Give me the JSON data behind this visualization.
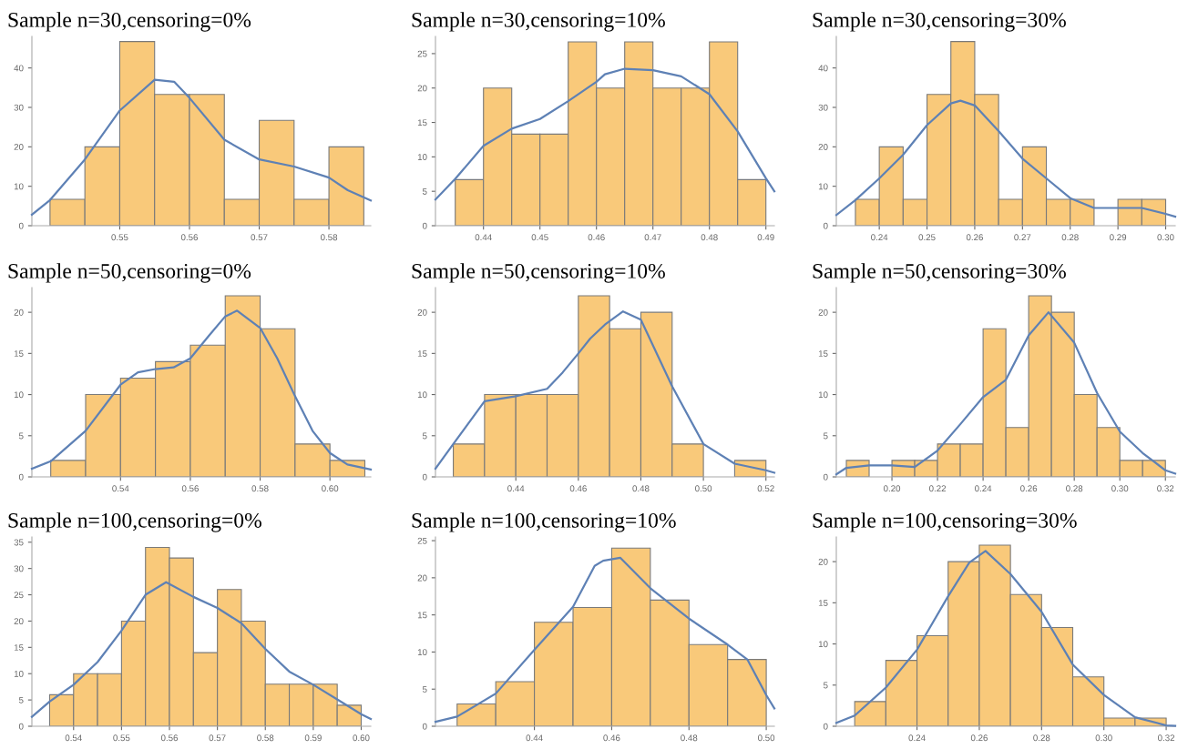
{
  "chart_data": [
    {
      "type": "histogram",
      "title": "Sample n=30,censoring=0%",
      "bins": [
        0.54,
        0.545,
        0.55,
        0.555,
        0.56,
        0.565,
        0.57,
        0.575,
        0.58,
        0.585
      ],
      "series": [
        {
          "color": "#f9c97a",
          "values": [
            6.7,
            20,
            46.7,
            33.3,
            33.3,
            6.7,
            26.7,
            6.7,
            20
          ]
        },
        {
          "type": "line",
          "color": "#5e81b5",
          "x": [
            0.5374,
            0.54,
            0.545,
            0.55,
            0.555,
            0.5578,
            0.56,
            0.565,
            0.57,
            0.575,
            0.58,
            0.5827,
            0.586
          ],
          "values": [
            2.8,
            6.5,
            16.8,
            29.2,
            37,
            36.5,
            32.4,
            21.8,
            16.8,
            15,
            12.2,
            9,
            6.4
          ]
        }
      ],
      "xlim": [
        0.5374,
        0.586
      ],
      "xticks": [
        0.55,
        0.56,
        0.57,
        0.58
      ],
      "ylim": [
        0,
        48
      ],
      "yticks": [
        0,
        10,
        20,
        30,
        40
      ]
    },
    {
      "type": "histogram",
      "title": "Sample n=30,censoring=10%",
      "bins": [
        0.435,
        0.44,
        0.445,
        0.45,
        0.455,
        0.46,
        0.465,
        0.47,
        0.475,
        0.48,
        0.485,
        0.49
      ],
      "series": [
        {
          "color": "#f9c97a",
          "values": [
            6.7,
            20,
            13.3,
            13.3,
            26.7,
            20,
            26.7,
            20,
            20,
            26.7,
            6.7
          ]
        },
        {
          "type": "line",
          "color": "#5e81b5",
          "x": [
            0.4315,
            0.435,
            0.44,
            0.445,
            0.45,
            0.455,
            0.46,
            0.4615,
            0.465,
            0.47,
            0.475,
            0.48,
            0.485,
            0.49,
            0.4915
          ],
          "values": [
            3.8,
            6.8,
            11.6,
            14.1,
            15.5,
            18.1,
            20.9,
            22,
            22.8,
            22.6,
            21.7,
            19.1,
            13.7,
            6.9,
            5.0
          ]
        }
      ],
      "xlim": [
        0.4315,
        0.4915
      ],
      "xticks": [
        0.44,
        0.45,
        0.46,
        0.47,
        0.48,
        0.49
      ],
      "ylim": [
        0,
        27.5
      ],
      "yticks": [
        0,
        5,
        10,
        15,
        20,
        25
      ]
    },
    {
      "type": "histogram",
      "title": "Sample n=30,censoring=30%",
      "bins": [
        0.235,
        0.24,
        0.245,
        0.25,
        0.255,
        0.26,
        0.265,
        0.27,
        0.275,
        0.28,
        0.285,
        0.29,
        0.295,
        0.3
      ],
      "series": [
        {
          "color": "#f9c97a",
          "values": [
            6.7,
            20,
            6.7,
            33.3,
            46.7,
            33.3,
            6.7,
            20,
            6.7,
            6.7,
            0,
            6.7,
            6.7
          ]
        },
        {
          "type": "line",
          "color": "#5e81b5",
          "x": [
            0.231,
            0.235,
            0.24,
            0.245,
            0.25,
            0.255,
            0.257,
            0.26,
            0.265,
            0.27,
            0.275,
            0.28,
            0.285,
            0.29,
            0.295,
            0.3,
            0.302
          ],
          "values": [
            2.7,
            6.5,
            12,
            18,
            25.5,
            31,
            31.7,
            30.5,
            24,
            17,
            12,
            7,
            4.5,
            4.5,
            4.5,
            3,
            2.3
          ]
        }
      ],
      "xlim": [
        0.231,
        0.302
      ],
      "xticks": [
        0.24,
        0.25,
        0.26,
        0.27,
        0.28,
        0.29,
        {
          "value": 0.3,
          "label": "0.30"
        }
      ],
      "ylim": [
        0,
        48
      ],
      "yticks": [
        0,
        10,
        20,
        30,
        40
      ]
    },
    {
      "type": "histogram",
      "title": "Sample n=50,censoring=0%",
      "bins": [
        0.52,
        0.53,
        0.54,
        0.55,
        0.56,
        0.57,
        0.58,
        0.59,
        0.6,
        0.61
      ],
      "series": [
        {
          "color": "#f9c97a",
          "values": [
            2,
            10,
            12,
            14,
            16,
            22,
            18,
            4,
            2
          ]
        },
        {
          "type": "line",
          "color": "#5e81b5",
          "x": [
            0.5146,
            0.52,
            0.53,
            0.54,
            0.545,
            0.55,
            0.5552,
            0.56,
            0.5654,
            0.57,
            0.5734,
            0.58,
            0.5849,
            0.59,
            0.595,
            0.6,
            0.605,
            0.6117
          ],
          "values": [
            1.0,
            1.9,
            5.6,
            11.2,
            12.7,
            13.1,
            13.3,
            14.4,
            17.2,
            19.5,
            20.2,
            18.1,
            14.4,
            9.8,
            5.6,
            2.9,
            1.5,
            0.9
          ]
        }
      ],
      "xlim": [
        0.5146,
        0.6117
      ],
      "xticks": [
        0.54,
        0.56,
        0.58,
        {
          "value": 0.6,
          "label": "0.60"
        }
      ],
      "ylim": [
        0,
        23
      ],
      "yticks": [
        0,
        5,
        10,
        15,
        20
      ]
    },
    {
      "type": "histogram",
      "title": "Sample n=50,censoring=10%",
      "bins": [
        0.42,
        0.43,
        0.44,
        0.45,
        0.46,
        0.47,
        0.48,
        0.49,
        0.5,
        0.51,
        0.52
      ],
      "series": [
        {
          "color": "#f9c97a",
          "values": [
            4,
            10,
            10,
            10,
            22,
            18,
            20,
            4,
            0,
            2
          ]
        },
        {
          "type": "line",
          "color": "#5e81b5",
          "x": [
            0.4143,
            0.42,
            0.43,
            0.44,
            0.45,
            0.455,
            0.46,
            0.4638,
            0.4685,
            0.4743,
            0.48,
            0.49,
            0.5,
            0.51,
            0.52,
            0.5227
          ],
          "values": [
            1.0,
            4,
            9.2,
            9.8,
            10.7,
            12.7,
            15,
            16.8,
            18.5,
            20.1,
            19.1,
            11,
            4,
            1.6,
            0.8,
            0.5
          ]
        }
      ],
      "xlim": [
        0.4143,
        0.5227
      ],
      "xticks": [
        0.44,
        0.46,
        0.48,
        {
          "value": 0.5,
          "label": "0.50"
        },
        0.52
      ],
      "ylim": [
        0,
        23
      ],
      "yticks": [
        0,
        5,
        10,
        15,
        20
      ]
    },
    {
      "type": "histogram",
      "title": "Sample n=50,censoring=30%",
      "bins": [
        0.18,
        0.19,
        0.2,
        0.21,
        0.22,
        0.23,
        0.24,
        0.25,
        0.26,
        0.27,
        0.28,
        0.29,
        0.3,
        0.31,
        0.32
      ],
      "series": [
        {
          "color": "#f9c97a",
          "values": [
            2,
            0,
            2,
            2,
            4,
            4,
            18,
            6,
            22,
            20,
            10,
            6,
            2,
            2
          ]
        },
        {
          "type": "line",
          "color": "#5e81b5",
          "x": [
            0.1756,
            0.18,
            0.19,
            0.2,
            0.21,
            0.22,
            0.23,
            0.24,
            0.25,
            0.26,
            0.2687,
            0.28,
            0.29,
            0.3,
            0.31,
            0.32,
            0.3243
          ],
          "values": [
            0.3,
            1.1,
            1.4,
            1.4,
            1.2,
            3.2,
            6.4,
            9.7,
            11.8,
            17.2,
            20,
            16.3,
            10.2,
            5.5,
            2.9,
            0.8,
            0.4
          ]
        }
      ],
      "xlim": [
        0.1756,
        0.3243
      ],
      "xticks": [
        {
          "value": 0.2,
          "label": "0.20"
        },
        0.22,
        0.24,
        0.26,
        0.28,
        {
          "value": 0.3,
          "label": "0.30"
        },
        0.32
      ],
      "ylim": [
        0,
        23
      ],
      "yticks": [
        0,
        5,
        10,
        15,
        20
      ]
    },
    {
      "type": "histogram",
      "title": "Sample n=100,censoring=0%",
      "bins": [
        0.535,
        0.54,
        0.545,
        0.55,
        0.555,
        0.56,
        0.565,
        0.57,
        0.575,
        0.58,
        0.585,
        0.59,
        0.595,
        0.6
      ],
      "series": [
        {
          "color": "#f9c97a",
          "values": [
            6,
            10,
            10,
            20,
            34,
            32,
            14,
            26,
            20,
            8,
            8,
            8,
            4
          ]
        },
        {
          "type": "line",
          "color": "#5e81b5",
          "x": [
            0.5313,
            0.535,
            0.54,
            0.545,
            0.55,
            0.555,
            0.5593,
            0.565,
            0.57,
            0.575,
            0.58,
            0.585,
            0.59,
            0.595,
            0.6,
            0.602
          ],
          "values": [
            1.8,
            4.7,
            7.9,
            12.2,
            18.2,
            25,
            27.4,
            24.6,
            22.5,
            19.6,
            14.7,
            10.4,
            7.9,
            5.1,
            2.3,
            1.4
          ]
        }
      ],
      "xlim": [
        0.5313,
        0.602
      ],
      "xticks": [
        0.54,
        0.55,
        0.56,
        0.57,
        0.58,
        0.59,
        {
          "value": 0.6,
          "label": "0.60"
        }
      ],
      "ylim": [
        0,
        36
      ],
      "yticks": [
        0,
        5,
        10,
        15,
        20,
        25,
        30,
        35
      ]
    },
    {
      "type": "histogram",
      "title": "Sample n=100,censoring=10%",
      "bins": [
        0.42,
        0.43,
        0.44,
        0.45,
        0.46,
        0.47,
        0.48,
        0.49,
        0.5
      ],
      "series": [
        {
          "color": "#f9c97a",
          "values": [
            3,
            6,
            14,
            16,
            24,
            17,
            11,
            9
          ]
        },
        {
          "type": "line",
          "color": "#5e81b5",
          "x": [
            0.4144,
            0.42,
            0.43,
            0.44,
            0.45,
            0.4556,
            0.4578,
            0.4622,
            0.47,
            0.48,
            0.49,
            0.4951,
            0.5,
            0.5021
          ],
          "values": [
            0.6,
            1.3,
            4.4,
            10.3,
            16.1,
            21.6,
            22.3,
            22.7,
            18.6,
            14.5,
            11,
            9,
            4.2,
            2.4
          ]
        }
      ],
      "xlim": [
        0.4144,
        0.5021
      ],
      "xticks": [
        0.44,
        0.46,
        0.48,
        {
          "value": 0.5,
          "label": "0.50"
        }
      ],
      "ylim": [
        0,
        25.5
      ],
      "yticks": [
        0,
        5,
        10,
        15,
        20,
        25
      ]
    },
    {
      "type": "histogram",
      "title": "Sample n=100,censoring=30%",
      "bins": [
        0.22,
        0.23,
        0.24,
        0.25,
        0.26,
        0.27,
        0.28,
        0.29,
        0.3,
        0.31,
        0.32
      ],
      "series": [
        {
          "color": "#f9c97a",
          "values": [
            3,
            8,
            11,
            20,
            22,
            16,
            12,
            6,
            1,
            1
          ]
        },
        {
          "type": "line",
          "color": "#5e81b5",
          "x": [
            0.2141,
            0.22,
            0.23,
            0.24,
            0.25,
            0.2568,
            0.262,
            0.27,
            0.28,
            0.29,
            0.3,
            0.31,
            0.32,
            0.3229
          ],
          "values": [
            0.4,
            1.3,
            4.7,
            9.3,
            15.8,
            19.9,
            21.3,
            18.5,
            13.9,
            7.5,
            3.8,
            1.1,
            0.1,
            0.05
          ]
        }
      ],
      "xlim": [
        0.2141,
        0.3229
      ],
      "xticks": [
        0.24,
        0.26,
        0.28,
        {
          "value": 0.3,
          "label": "0.30"
        },
        0.32
      ],
      "ylim": [
        0,
        23
      ],
      "yticks": [
        0,
        5,
        10,
        15,
        20
      ]
    }
  ]
}
